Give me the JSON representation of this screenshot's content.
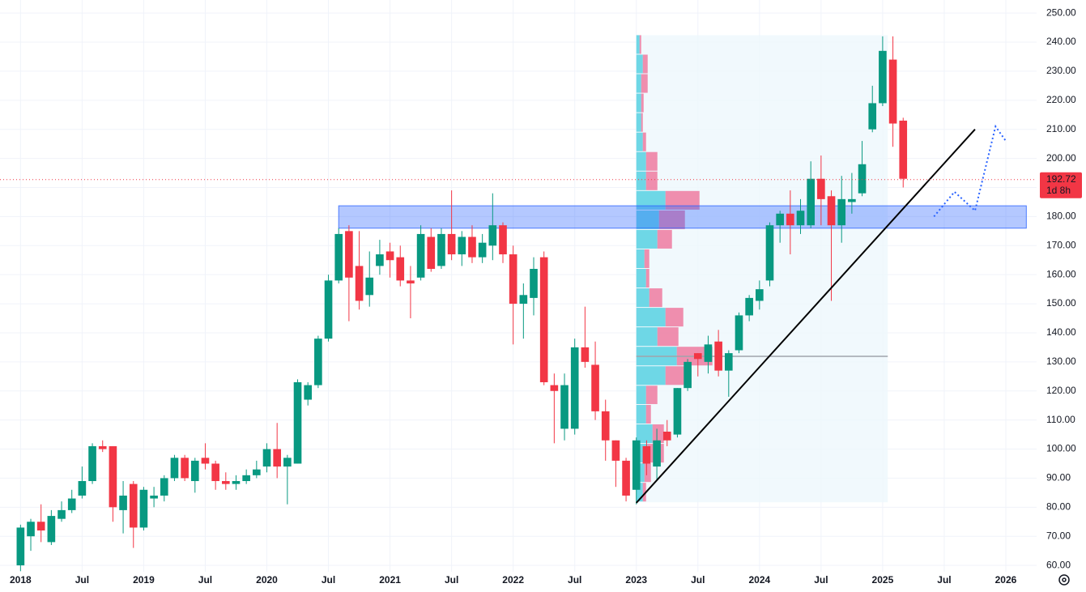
{
  "chart_data": {
    "type": "candlestick",
    "x": [
      "2018-01",
      "2018-02",
      "2018-03",
      "2018-04",
      "2018-05",
      "2018-06",
      "2018-07",
      "2018-08",
      "2018-09",
      "2018-10",
      "2018-11",
      "2018-12",
      "2019-01",
      "2019-02",
      "2019-03",
      "2019-04",
      "2019-05",
      "2019-06",
      "2019-07",
      "2019-08",
      "2019-09",
      "2019-10",
      "2019-11",
      "2019-12",
      "2020-01",
      "2020-02",
      "2020-03",
      "2020-04",
      "2020-05",
      "2020-06",
      "2020-07",
      "2020-08",
      "2020-09",
      "2020-10",
      "2020-11",
      "2020-12",
      "2021-01",
      "2021-02",
      "2021-03",
      "2021-04",
      "2021-05",
      "2021-06",
      "2021-07",
      "2021-08",
      "2021-09",
      "2021-10",
      "2021-11",
      "2021-12",
      "2022-01",
      "2022-02",
      "2022-03",
      "2022-04",
      "2022-05",
      "2022-06",
      "2022-07",
      "2022-08",
      "2022-09",
      "2022-10",
      "2022-11",
      "2022-12",
      "2023-01",
      "2023-02",
      "2023-03",
      "2023-04",
      "2023-05",
      "2023-06",
      "2023-07",
      "2023-08",
      "2023-09",
      "2023-10",
      "2023-11",
      "2023-12",
      "2024-01",
      "2024-02",
      "2024-03",
      "2024-04",
      "2024-05",
      "2024-06",
      "2024-07",
      "2024-08",
      "2024-09",
      "2024-10",
      "2024-11",
      "2024-12",
      "2025-01",
      "2025-02",
      "2025-03"
    ],
    "open": [
      60,
      70,
      75,
      68,
      76,
      79,
      84,
      89,
      101,
      101,
      79,
      88,
      73,
      83,
      84,
      90,
      97,
      89,
      97,
      95,
      89,
      88,
      89,
      91,
      94,
      100,
      94,
      95,
      117,
      122,
      138,
      158,
      175,
      163,
      153,
      163,
      168,
      166,
      158,
      159,
      173,
      163,
      174,
      167,
      173,
      166,
      170,
      177,
      167,
      150,
      152,
      166,
      122,
      107,
      107,
      135,
      129,
      113,
      103,
      96,
      86,
      101,
      94,
      106,
      105,
      121,
      133,
      130,
      137,
      127,
      134,
      146,
      151,
      158,
      177,
      181,
      177,
      177,
      193,
      187,
      177,
      185,
      188,
      210,
      219,
      234,
      213
    ],
    "high": [
      74,
      76,
      81,
      79,
      82,
      86,
      94,
      102,
      103,
      101,
      89,
      89,
      87,
      87,
      91,
      98,
      98,
      97,
      102,
      96,
      92,
      91,
      93,
      96,
      102,
      109,
      98,
      124,
      123,
      139,
      160,
      176,
      177,
      175,
      168,
      172,
      171,
      170,
      163,
      177,
      176,
      176,
      189,
      175,
      177,
      174,
      188,
      178,
      170,
      157,
      166,
      168,
      126,
      126,
      138,
      149,
      137,
      117,
      103,
      97,
      104,
      103,
      107,
      110,
      121,
      131,
      133,
      139,
      141,
      134,
      147,
      153,
      158,
      178,
      182,
      189,
      186,
      199,
      201,
      189,
      194,
      195,
      206,
      225,
      242,
      242,
      214
    ],
    "low": [
      58,
      65,
      68,
      67,
      75,
      78,
      83,
      88,
      99,
      75,
      71,
      66,
      72,
      80,
      82,
      89,
      89,
      85,
      93,
      86,
      86,
      86,
      88,
      90,
      92,
      90,
      81,
      95,
      115,
      121,
      137,
      157,
      144,
      148,
      149,
      160,
      159,
      156,
      145,
      158,
      161,
      162,
      165,
      163,
      164,
      164,
      165,
      164,
      136,
      138,
      146,
      122,
      102,
      103,
      105,
      128,
      110,
      96,
      87,
      82,
      81,
      91,
      89,
      101,
      104,
      120,
      125,
      126,
      125,
      118,
      133,
      144,
      148,
      156,
      171,
      167,
      174,
      176,
      177,
      151,
      171,
      181,
      187,
      209,
      218,
      204,
      190
    ],
    "close": [
      73,
      75,
      72,
      77,
      79,
      83,
      89,
      101,
      100,
      80,
      84,
      73,
      86,
      84,
      90,
      97,
      90,
      96,
      95,
      89,
      88,
      89,
      91,
      93,
      100,
      94,
      97,
      123,
      122,
      138,
      158,
      174,
      159,
      151,
      159,
      167,
      165,
      158,
      157,
      174,
      162,
      174,
      167,
      173,
      166,
      171,
      177,
      167,
      150,
      153,
      162,
      123,
      120,
      122,
      135,
      130,
      113,
      103,
      96,
      84,
      103,
      95,
      103,
      103,
      121,
      130,
      131,
      136,
      127,
      133,
      146,
      152,
      155,
      177,
      181,
      177,
      182,
      193,
      186,
      177,
      186,
      186,
      198,
      219,
      237,
      212,
      193
    ],
    "up_color": "#089981",
    "down_color": "#f23645",
    "xlim": [
      "2017-11",
      "2026-04"
    ],
    "xticks": [
      {
        "value": "2018-01",
        "label": "2018"
      },
      {
        "value": "2018-07",
        "label": "Jul"
      },
      {
        "value": "2019-01",
        "label": "2019"
      },
      {
        "value": "2019-07",
        "label": "Jul"
      },
      {
        "value": "2020-01",
        "label": "2020"
      },
      {
        "value": "2020-07",
        "label": "Jul"
      },
      {
        "value": "2021-01",
        "label": "2021"
      },
      {
        "value": "2021-07",
        "label": "Jul"
      },
      {
        "value": "2022-01",
        "label": "2022"
      },
      {
        "value": "2022-07",
        "label": "Jul"
      },
      {
        "value": "2023-01",
        "label": "2023"
      },
      {
        "value": "2023-07",
        "label": "Jul"
      },
      {
        "value": "2024-01",
        "label": "2024"
      },
      {
        "value": "2024-07",
        "label": "Jul"
      },
      {
        "value": "2025-01",
        "label": "2025"
      },
      {
        "value": "2025-07",
        "label": "Jul"
      },
      {
        "value": "2026-01",
        "label": "2026"
      }
    ],
    "ylim": [
      57.8,
      254.5
    ],
    "yticks": [
      {
        "value": 60,
        "label": "60.00"
      },
      {
        "value": 70,
        "label": "70.00"
      },
      {
        "value": 80,
        "label": "80.00"
      },
      {
        "value": 90,
        "label": "90.00"
      },
      {
        "value": 100,
        "label": "100.00"
      },
      {
        "value": 110,
        "label": "110.00"
      },
      {
        "value": 120,
        "label": "120.00"
      },
      {
        "value": 130,
        "label": "130.00"
      },
      {
        "value": 140,
        "label": "140.00"
      },
      {
        "value": 150,
        "label": "150.00"
      },
      {
        "value": 160,
        "label": "160.00"
      },
      {
        "value": 170,
        "label": "170.00"
      },
      {
        "value": 180,
        "label": "180.00"
      },
      {
        "value": 190,
        "label": "190.00"
      },
      {
        "value": 200,
        "label": "200.00"
      },
      {
        "value": 210,
        "label": "210.00"
      },
      {
        "value": 220,
        "label": "220.00"
      },
      {
        "value": 230,
        "label": "230.00"
      },
      {
        "value": 240,
        "label": "240.00"
      },
      {
        "value": 250,
        "label": "250.00"
      }
    ],
    "grid": true,
    "last_price": 192.72,
    "countdown": "1d 8h",
    "last_price_color": "#f23645",
    "volume_profile": {
      "start": "2023-01",
      "end": "2025-01",
      "poc": 131.9,
      "up_color": "#5fd3e3",
      "down_color": "#ee6a93",
      "background": "#eef7fc",
      "poc_color": "#a0a4ab",
      "bins": [
        81.7,
        88.4,
        95.1,
        101.8,
        108.5,
        115.2,
        121.8,
        128.5,
        135.2,
        141.9,
        148.6,
        155.3,
        162.0,
        168.7,
        175.4,
        182.1,
        188.8,
        195.5,
        202.2,
        208.9,
        215.6,
        222.3,
        229.0,
        235.7,
        242.4
      ],
      "up": [
        8,
        10,
        14,
        20,
        12,
        12,
        36,
        50,
        26,
        36,
        16,
        12,
        10,
        26,
        28,
        36,
        12,
        12,
        8,
        6,
        6,
        6,
        8,
        4
      ],
      "down": [
        4,
        8,
        20,
        14,
        6,
        14,
        32,
        44,
        26,
        22,
        16,
        4,
        6,
        18,
        32,
        42,
        14,
        14,
        4,
        2,
        3,
        8,
        6,
        2
      ]
    },
    "zone": {
      "start": "2020-08",
      "end": "2026-03",
      "ylim": [
        176,
        183.7
      ],
      "color": "#2962ff"
    },
    "trendline": {
      "x": [
        "2023-01",
        "2025-10"
      ],
      "values": [
        81.5,
        210
      ],
      "color": "#000000"
    },
    "projection": {
      "x": [
        "2025-06",
        "2025-08",
        "2025-10",
        "2025-12",
        "2026-01"
      ],
      "values": [
        180,
        188.5,
        182,
        211,
        206
      ],
      "color": "#2962ff"
    }
  }
}
